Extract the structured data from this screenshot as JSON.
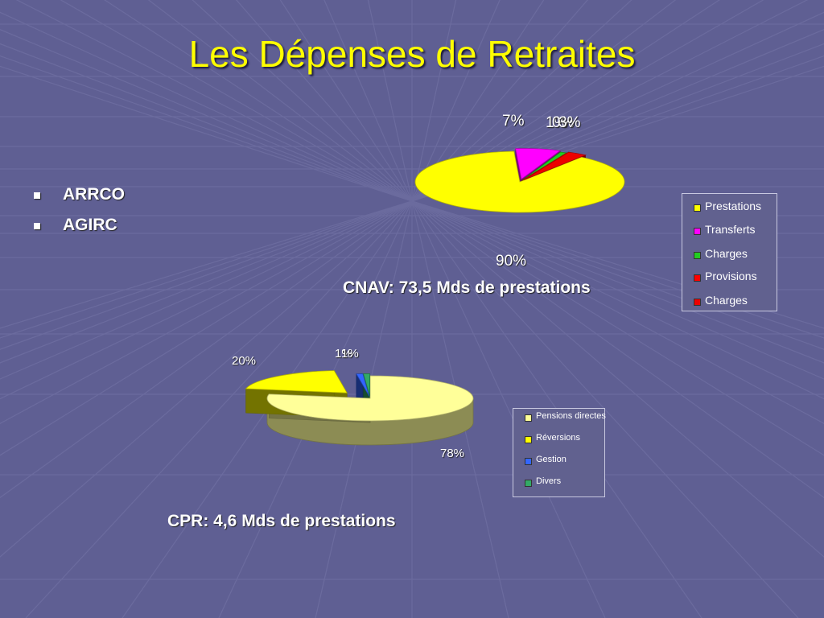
{
  "slide": {
    "title": "Les Dépenses de Retraites",
    "bullets": [
      "ARRCO",
      "AGIRC"
    ]
  },
  "chart_data": [
    {
      "type": "pie",
      "caption": "CNAV: 73,5 Mds de prestations",
      "categories": [
        "Prestations",
        "Transferts",
        "Charges",
        "Provisions",
        "Charges"
      ],
      "values": [
        90,
        7,
        1,
        0,
        3
      ],
      "data_labels": [
        "90%",
        "7%",
        "1%",
        "0%",
        "3%"
      ],
      "colors": [
        "#ffff00",
        "#ff00ff",
        "#22cc22",
        "#ff0000",
        "#ee0000"
      ],
      "legend": "right"
    },
    {
      "type": "pie",
      "caption": "CPR: 4,6 Mds de prestations",
      "categories": [
        "Pensions directes",
        "Réversions",
        "Gestion",
        "Divers"
      ],
      "values": [
        78,
        20,
        1,
        1
      ],
      "data_labels": [
        "78%",
        "20%",
        "1%",
        "1%"
      ],
      "colors": [
        "#ffff99",
        "#ffff00",
        "#3366ff",
        "#33aa66"
      ],
      "legend": "right"
    }
  ]
}
